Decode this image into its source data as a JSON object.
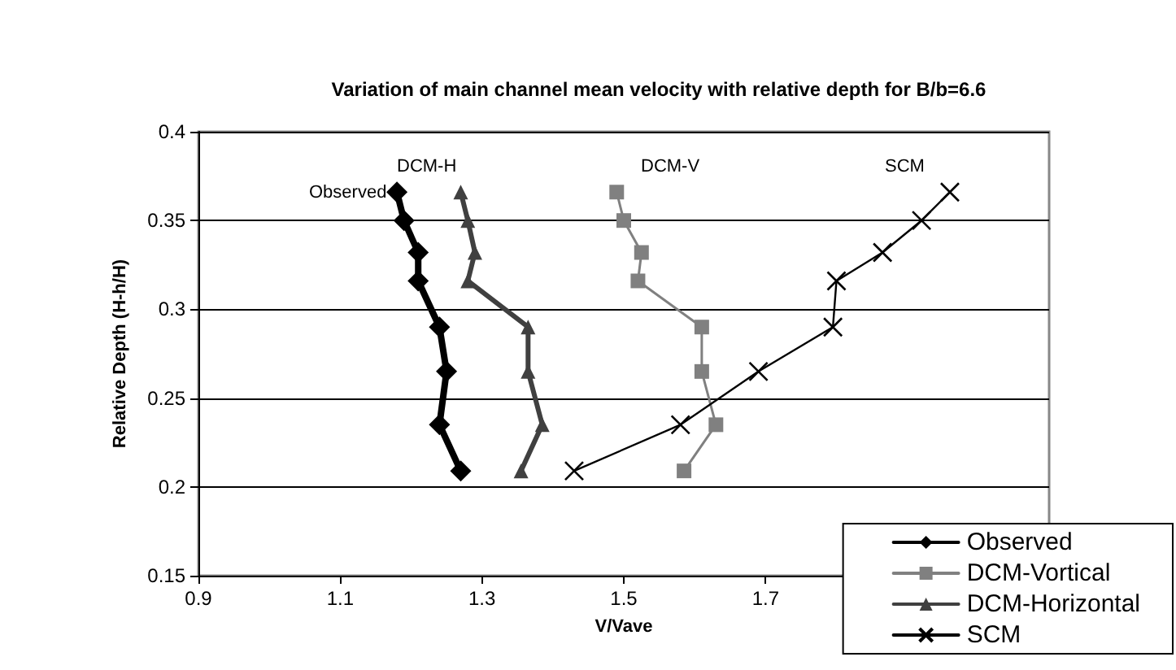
{
  "chart_data": {
    "type": "line",
    "title": "Variation of main channel mean velocity with relative depth for B/b=6.6",
    "xlabel": "V/Vave",
    "ylabel": "Relative Depth (H-h/H)",
    "xlim": [
      0.9,
      2.1
    ],
    "xticks": [
      0.9,
      1.1,
      1.3,
      1.5,
      1.7
    ],
    "ylim": [
      0.15,
      0.4
    ],
    "yticks": [
      0.15,
      0.2,
      0.25,
      0.3,
      0.35,
      0.4
    ],
    "grid": "y",
    "legend": "bottom right",
    "series": [
      {
        "name": "Observed",
        "color": "#000000",
        "marker": "diamond",
        "x": [
          1.18,
          1.19,
          1.21,
          1.21,
          1.24,
          1.25,
          1.24,
          1.27
        ],
        "values": [
          0.366,
          0.35,
          0.332,
          0.316,
          0.29,
          0.265,
          0.235,
          0.209
        ]
      },
      {
        "name": "DCM-Vortical",
        "color": "#808080",
        "marker": "square",
        "x": [
          1.49,
          1.5,
          1.525,
          1.52,
          1.61,
          1.61,
          1.63,
          1.585
        ],
        "values": [
          0.366,
          0.35,
          0.332,
          0.316,
          0.29,
          0.265,
          0.235,
          0.209
        ]
      },
      {
        "name": "DCM-Horizontal",
        "color": "#404040",
        "marker": "triangle",
        "x": [
          1.27,
          1.28,
          1.29,
          1.28,
          1.365,
          1.365,
          1.385,
          1.355
        ],
        "values": [
          0.366,
          0.35,
          0.332,
          0.316,
          0.29,
          0.265,
          0.235,
          0.209
        ]
      },
      {
        "name": "SCM",
        "color": "#000000",
        "marker": "cross",
        "x": [
          1.96,
          1.92,
          1.865,
          1.8,
          1.795,
          1.69,
          1.58,
          1.43
        ],
        "values": [
          0.366,
          0.35,
          0.332,
          0.316,
          0.29,
          0.265,
          0.235,
          0.209
        ]
      }
    ],
    "annotations": [
      "Observed",
      "DCM-H",
      "DCM-V",
      "SCM"
    ]
  }
}
